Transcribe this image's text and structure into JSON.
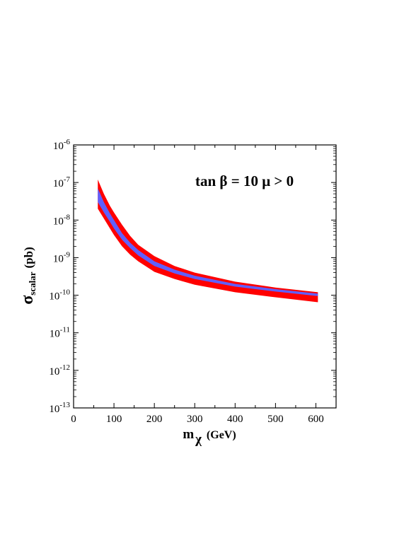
{
  "chart_data": {
    "type": "area",
    "title": "",
    "annotation": "tan β = 10  μ > 0",
    "xlabel": "m",
    "xlabel_sub": "χ",
    "xlabel_unit": "(GeV)",
    "ylabel": "σ",
    "ylabel_sub": "scalar",
    "ylabel_unit": "(pb)",
    "xlim": [
      0,
      650
    ],
    "ylim": [
      1e-13,
      1e-06
    ],
    "yscale": "log",
    "grid": false,
    "x_ticks": [
      0,
      100,
      200,
      300,
      400,
      500,
      600
    ],
    "x_tick_labels": [
      "0",
      "100",
      "200",
      "300",
      "400",
      "500",
      "600"
    ],
    "y_ticks": [
      1e-13,
      1e-12,
      1e-11,
      1e-10,
      1e-09,
      1e-08,
      1e-07,
      1e-06
    ],
    "y_tick_labels": [
      {
        "base": "10",
        "exp": "-13"
      },
      {
        "base": "10",
        "exp": "-12"
      },
      {
        "base": "10",
        "exp": "-11"
      },
      {
        "base": "10",
        "exp": "-10"
      },
      {
        "base": "10",
        "exp": "-9"
      },
      {
        "base": "10",
        "exp": "-8"
      },
      {
        "base": "10",
        "exp": "-7"
      },
      {
        "base": "10",
        "exp": "-6"
      }
    ],
    "series": [
      {
        "color": "#ff0000",
        "x": [
          60,
          75,
          90,
          100,
          120,
          140,
          160,
          200,
          250,
          300,
          400,
          500,
          605
        ],
        "lower": [
          2e-08,
          1.1e-08,
          6e-09,
          4e-09,
          2e-09,
          1.2e-09,
          8e-10,
          4.2e-10,
          2.7e-10,
          1.9e-10,
          1.2e-10,
          8.8e-11,
          6.5e-11
        ],
        "upper": [
          1.2e-07,
          5e-08,
          2.4e-08,
          1.6e-08,
          7.5e-09,
          3.8e-09,
          2.2e-09,
          1.1e-09,
          6e-10,
          4e-10,
          2.3e-10,
          1.6e-10,
          1.2e-10
        ]
      },
      {
        "color": "#6060ff",
        "x": [
          60,
          75,
          90,
          100,
          120,
          140,
          160,
          200,
          250,
          300,
          400,
          500,
          605
        ],
        "lower": [
          3e-08,
          1.6e-08,
          9e-09,
          6e-09,
          3e-09,
          1.8e-09,
          1.15e-09,
          6e-10,
          3.8e-10,
          2.7e-10,
          1.7e-10,
          1.25e-10,
          9.5e-11
        ],
        "upper": [
          7e-08,
          3e-08,
          1.5e-08,
          1e-08,
          4.5e-09,
          2.5e-09,
          1.6e-09,
          8e-10,
          4.8e-10,
          3.3e-10,
          2e-10,
          1.45e-10,
          1.1e-10
        ]
      }
    ]
  }
}
